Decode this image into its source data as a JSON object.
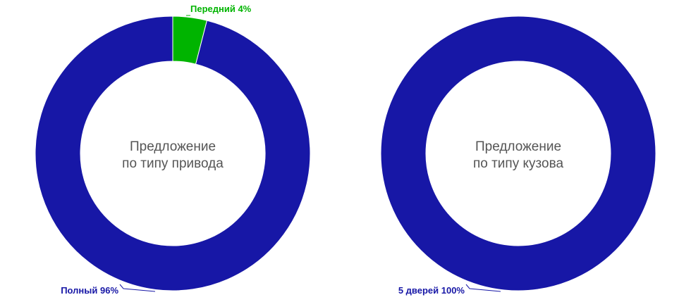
{
  "chart_data": [
    {
      "type": "pie",
      "title_lines": [
        "Предложение",
        "по типу привода"
      ],
      "slices": [
        {
          "label": "Передний",
          "value": 4,
          "label_text": "Передний 4%",
          "color": "#00b400"
        },
        {
          "label": "Полный",
          "value": 96,
          "label_text": "Полный 96%",
          "color": "#1717a6"
        }
      ]
    },
    {
      "type": "pie",
      "title_lines": [
        "Предложение",
        "по типу кузова"
      ],
      "slices": [
        {
          "label": "5 дверей",
          "value": 100,
          "label_text": "5 дверей 100%",
          "color": "#1717a6"
        }
      ]
    }
  ]
}
